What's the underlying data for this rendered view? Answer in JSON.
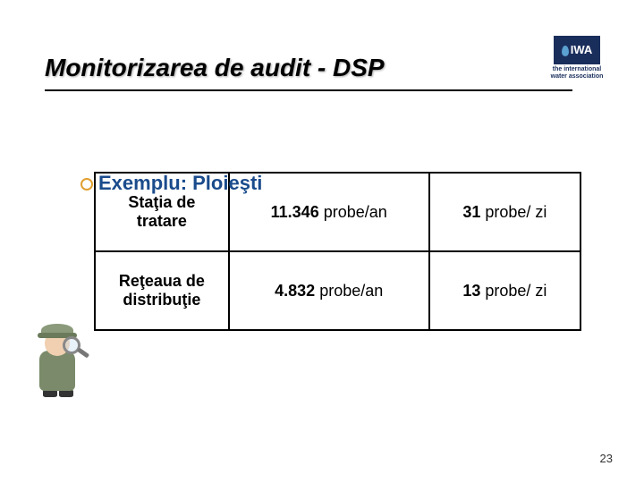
{
  "title": "Monitorizarea de audit - DSP",
  "logo": {
    "abbrev": "IWA",
    "tagline": "the international water association"
  },
  "bullet": {
    "label": "Exemplu: Ploieşti"
  },
  "table": {
    "rows": [
      {
        "head": "Staţia de tratare",
        "mid_bold": "11.346",
        "mid_rest": " probe/an",
        "right_bold": "31",
        "right_rest": " probe/ zi"
      },
      {
        "head": "Reţeaua de distribuţie",
        "mid_bold": "4.832",
        "mid_rest": " probe/an",
        "right_bold": "13",
        "right_rest": " probe/ zi"
      }
    ]
  },
  "page_number": "23",
  "colors": {
    "heading_color": "#000000",
    "bullet_text_color": "#1a4b8c",
    "bullet_ring_color": "#e0a030",
    "border_color": "#000000",
    "logo_bg": "#1a2e5c"
  }
}
